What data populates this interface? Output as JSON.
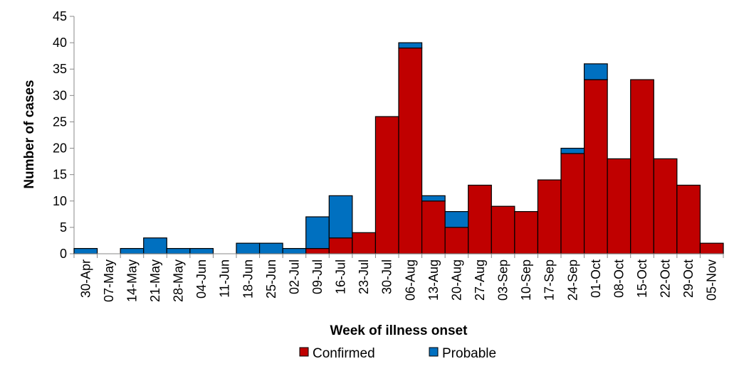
{
  "chart_data": {
    "type": "bar",
    "stacked": true,
    "title": "",
    "xlabel": "Week of illness onset",
    "ylabel": "Number of cases",
    "ylim": [
      0,
      45
    ],
    "yticks": [
      0,
      5,
      10,
      15,
      20,
      25,
      30,
      35,
      40,
      45
    ],
    "grid": false,
    "legend_position": "bottom",
    "categories": [
      "30-Apr",
      "07-May",
      "14-May",
      "21-May",
      "28-May",
      "04-Jun",
      "11-Jun",
      "18-Jun",
      "25-Jun",
      "02-Jul",
      "09-Jul",
      "16-Jul",
      "23-Jul",
      "30-Jul",
      "06-Aug",
      "13-Aug",
      "20-Aug",
      "27-Aug",
      "03-Sep",
      "10-Sep",
      "17-Sep",
      "24-Sep",
      "01-Oct",
      "08-Oct",
      "15-Oct",
      "22-Oct",
      "29-Oct",
      "05-Nov"
    ],
    "series": [
      {
        "name": "Confirmed",
        "color": "#C00000",
        "values": [
          0,
          0,
          0,
          0,
          0,
          0,
          0,
          0,
          0,
          0,
          1,
          3,
          4,
          26,
          39,
          10,
          5,
          13,
          9,
          8,
          14,
          19,
          33,
          18,
          33,
          18,
          13,
          2
        ]
      },
      {
        "name": "Probable",
        "color": "#0070C0",
        "values": [
          1,
          0,
          1,
          3,
          1,
          1,
          0,
          2,
          2,
          1,
          6,
          8,
          0,
          0,
          1,
          1,
          3,
          0,
          0,
          0,
          0,
          1,
          3,
          0,
          0,
          0,
          0,
          0
        ]
      }
    ]
  }
}
